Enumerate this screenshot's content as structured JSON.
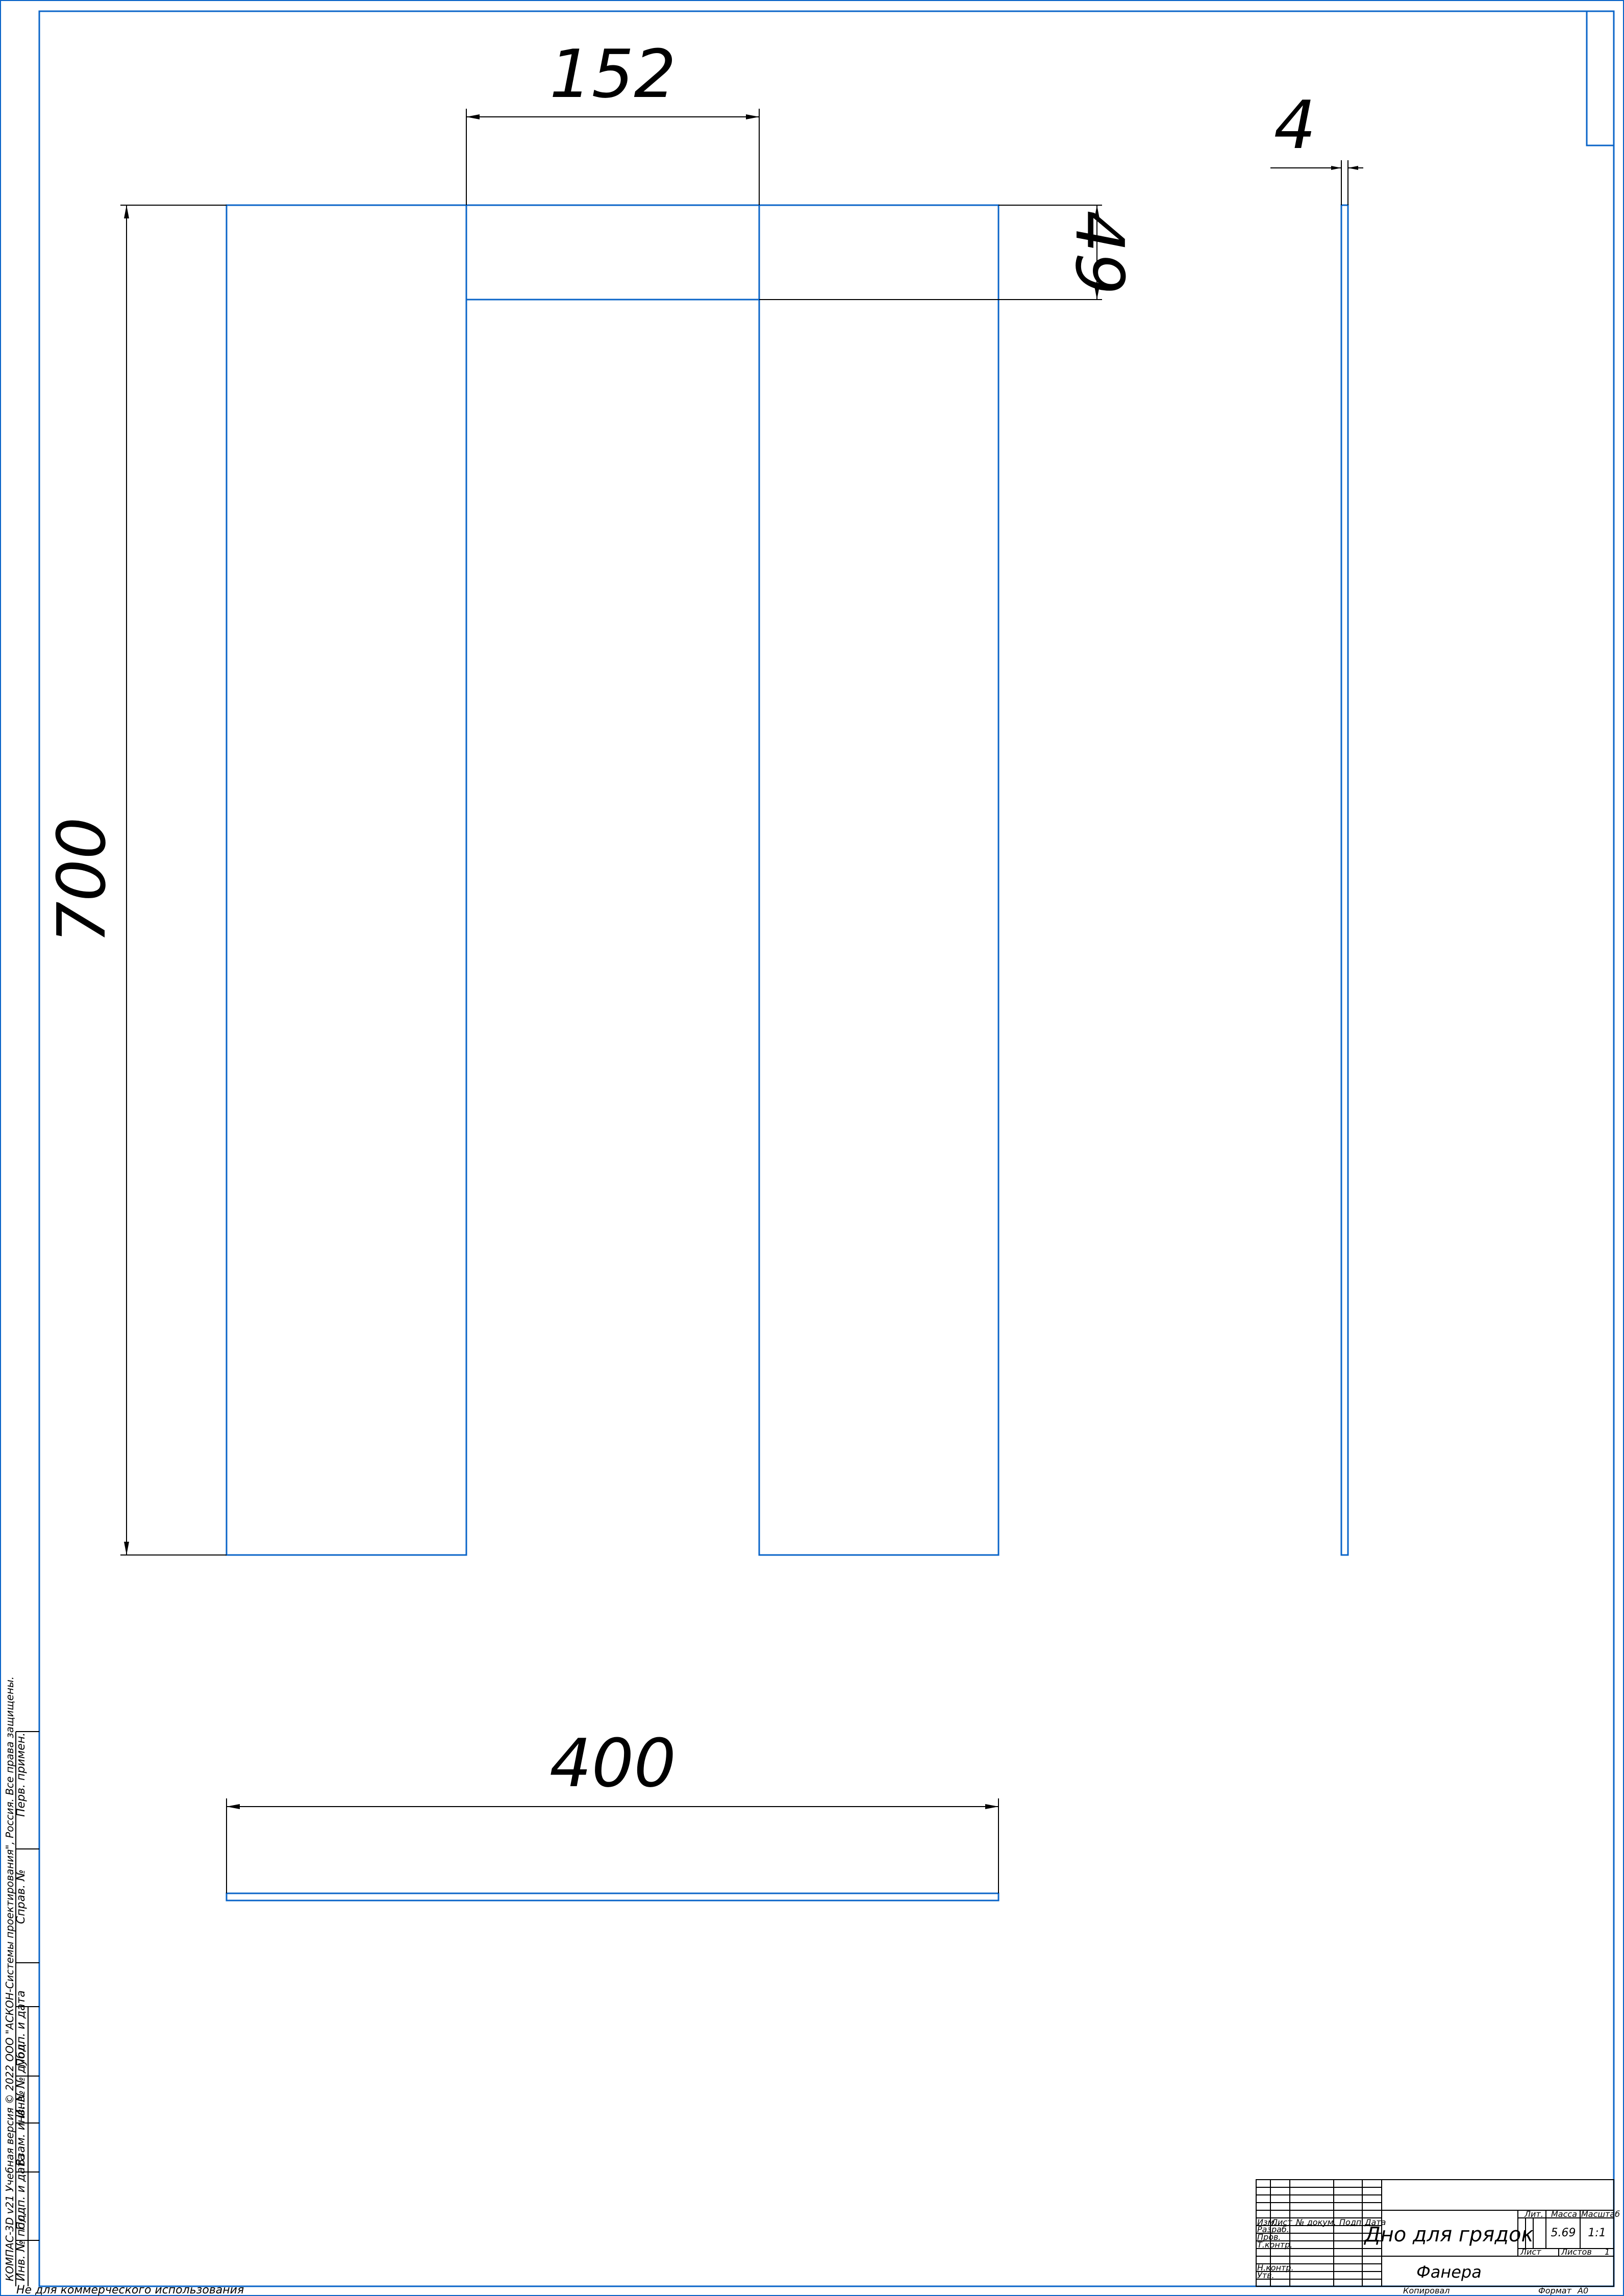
{
  "colors": {
    "frame": "#0a64c8",
    "ink": "#000000",
    "paper": "#ffffff"
  },
  "dimensions": {
    "width_152": "152",
    "height_49": "49",
    "height_700": "700",
    "thickness_4": "4",
    "width_400": "400"
  },
  "title_block": {
    "title": "Дно для грядок",
    "material": "Фанера",
    "mass_value": "5.69",
    "scale_value": "1:1",
    "headers": {
      "lit": "Лит.",
      "mass": "Масса",
      "scale": "Масштаб"
    },
    "sheet_label": "Лист",
    "sheets_label": "Листов",
    "sheets_value": "1",
    "row_labels": {
      "izm": "Изм.",
      "list": "Лист",
      "doc": "№ докум.",
      "sign": "Подп.",
      "date": "Дата"
    },
    "roles": [
      "Разраб.",
      "Пров.",
      "Т.контр.",
      "",
      "Н.контр.",
      "Утв."
    ],
    "copied_label": "Копировал",
    "format_label": "Формат",
    "format_value": "А0"
  },
  "side_strip": {
    "perv_primen": "Перв. примен.",
    "sprav_no": "Справ. №",
    "podp_data_1": "Подп. и дата",
    "inv_dubl": "Инв. № дубл.",
    "vzam_inv": "Взам. инв. №",
    "podp_data_2": "Подп. и дата",
    "inv_podl": "Инв. № подл."
  },
  "margin_notes": {
    "license": "КОМПАС-3D v21 Учебная версия © 2022 ООО \"АСКОН-Системы проектирования\", Россия. Все права защищены.",
    "non_commercial": "Не для коммерческого использования"
  }
}
